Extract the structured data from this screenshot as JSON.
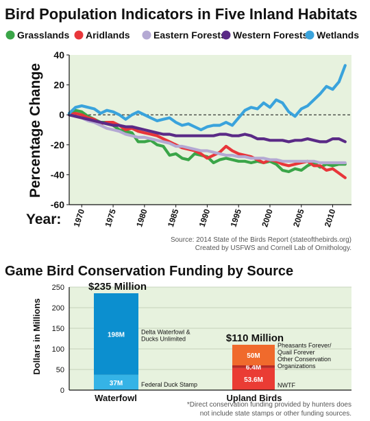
{
  "chart_data": [
    {
      "type": "line",
      "title": "Bird Population Indicators in Five Inland Habitats",
      "ylabel": "Percentage Change",
      "xlabel": "Year:",
      "ylim": [
        -60,
        40
      ],
      "xlim": [
        1968,
        2013
      ],
      "y_ticks": [
        40,
        20,
        0,
        -20,
        -40,
        -60
      ],
      "x_ticks": [
        1970,
        1975,
        1980,
        1985,
        1990,
        1995,
        2000,
        2005,
        2010
      ],
      "grid": false,
      "zero_line": "dashed",
      "legend": "top",
      "x": [
        1968,
        1969,
        1970,
        1971,
        1972,
        1973,
        1974,
        1975,
        1976,
        1977,
        1978,
        1979,
        1980,
        1981,
        1982,
        1983,
        1984,
        1985,
        1986,
        1987,
        1988,
        1989,
        1990,
        1991,
        1992,
        1993,
        1994,
        1995,
        1996,
        1997,
        1998,
        1999,
        2000,
        2001,
        2002,
        2003,
        2004,
        2005,
        2006,
        2007,
        2008,
        2009,
        2010,
        2011,
        2012
      ],
      "series": [
        {
          "name": "Grasslands",
          "color": "#3aa548",
          "values": [
            1,
            3,
            2,
            -1,
            -3,
            -5,
            -5,
            -7,
            -10,
            -11,
            -12,
            -18,
            -18,
            -17,
            -20,
            -21,
            -27,
            -26,
            -29,
            -30,
            -26,
            -27,
            -28,
            -32,
            -30,
            -29,
            -30,
            -31,
            -31,
            -32,
            -31,
            -32,
            -31,
            -33,
            -37,
            -38,
            -36,
            -37,
            -34,
            -32,
            -35,
            -33,
            -34,
            -33,
            -33
          ]
        },
        {
          "name": "Aridlands",
          "color": "#e8363a",
          "values": [
            0,
            1,
            0,
            -2,
            -3,
            -6,
            -5,
            -5,
            -7,
            -10,
            -9,
            -11,
            -12,
            -13,
            -14,
            -16,
            -18,
            -20,
            -22,
            -23,
            -24,
            -26,
            -29,
            -27,
            -25,
            -21,
            -24,
            -26,
            -27,
            -28,
            -30,
            -32,
            -30,
            -31,
            -33,
            -34,
            -33,
            -32,
            -31,
            -34,
            -34,
            -37,
            -36,
            -39,
            -42
          ]
        },
        {
          "name": "Eastern Forests",
          "color": "#b4a9d3",
          "values": [
            0,
            -1,
            -2,
            -4,
            -5,
            -7,
            -9,
            -10,
            -11,
            -13,
            -14,
            -15,
            -15,
            -16,
            -17,
            -18,
            -19,
            -21,
            -21,
            -22,
            -23,
            -24,
            -24,
            -25,
            -26,
            -27,
            -27,
            -28,
            -28,
            -29,
            -29,
            -29,
            -30,
            -30,
            -31,
            -31,
            -31,
            -31,
            -31,
            -31,
            -32,
            -32,
            -32,
            -32,
            -32
          ]
        },
        {
          "name": "Western Forests",
          "color": "#5a2a86",
          "values": [
            0,
            -1,
            -2,
            -3,
            -4,
            -5,
            -6,
            -7,
            -7,
            -8,
            -8,
            -9,
            -10,
            -11,
            -12,
            -13,
            -13,
            -14,
            -14,
            -14,
            -14,
            -14,
            -14,
            -14,
            -13,
            -13,
            -14,
            -14,
            -13,
            -14,
            -16,
            -16,
            -17,
            -17,
            -17,
            -18,
            -17,
            -17,
            -16,
            -17,
            -18,
            -18,
            -16,
            -16,
            -18
          ]
        },
        {
          "name": "Wetlands",
          "color": "#3aa3dc",
          "values": [
            1,
            5,
            6,
            5,
            4,
            1,
            3,
            2,
            0,
            -3,
            0,
            2,
            0,
            -2,
            -4,
            -3,
            -2,
            -5,
            -7,
            -6,
            -8,
            -10,
            -8,
            -7,
            -7,
            -5,
            -7,
            -2,
            3,
            5,
            4,
            8,
            5,
            10,
            8,
            2,
            -1,
            4,
            6,
            10,
            14,
            19,
            17,
            22,
            33
          ]
        }
      ],
      "source": [
        "Source: 2014 State of the Birds Report (stateofthebirds.org)",
        "Created by USFWS and Cornell Lab of Ornithology."
      ]
    },
    {
      "type": "bar",
      "stacked": true,
      "title": "Game Bird Conservation Funding by Source",
      "ylabel": "Dollars in Millions",
      "ylim": [
        0,
        250
      ],
      "y_ticks": [
        0,
        50,
        100,
        150,
        200,
        250
      ],
      "grid": "horizontal",
      "categories": [
        "Waterfowl",
        "Upland Birds"
      ],
      "totals": [
        {
          "category": "Waterfowl",
          "label": "$235 Million",
          "value": 235
        },
        {
          "category": "Upland Birds",
          "label": "$110 Million",
          "value": 110
        }
      ],
      "stacks": [
        {
          "category": "Waterfowl",
          "segments": [
            {
              "name": "Federal Duck Stamp",
              "value": 37,
              "value_label": "37M",
              "color": "#35b3e6"
            },
            {
              "name": "Delta Waterfowl & Ducks Unlimited",
              "value": 198,
              "value_label": "198M",
              "color": "#0c8fcf"
            }
          ]
        },
        {
          "category": "Upland Birds",
          "segments": [
            {
              "name": "NWTF",
              "value": 53.6,
              "value_label": "53.6M",
              "color": "#ea3c34"
            },
            {
              "name": "Other Conservation Organizations",
              "value": 6.4,
              "value_label": "6.4M",
              "color": "#b52a25"
            },
            {
              "name": "Pheasants Forever/ Quail Forever",
              "value": 50,
              "value_label": "50M",
              "color": "#f06a2c"
            }
          ]
        }
      ],
      "footnote": [
        "*Direct conservation funding provided by hunters does",
        "not include state stamps or other funding sources."
      ]
    }
  ]
}
